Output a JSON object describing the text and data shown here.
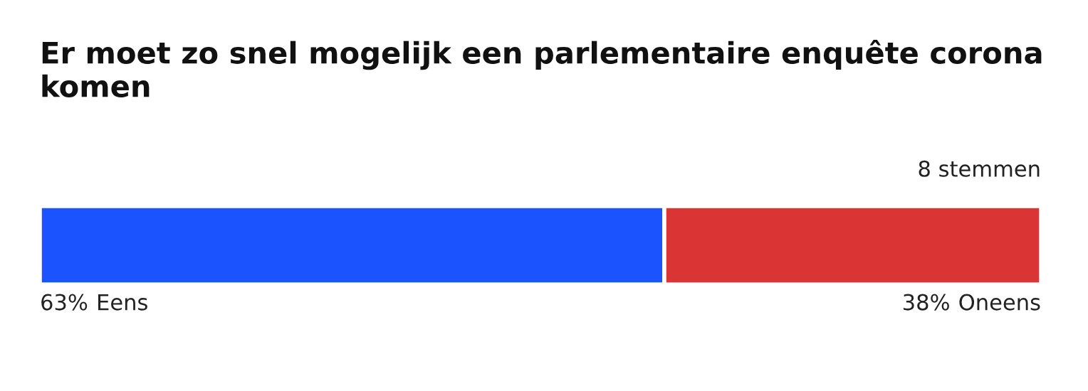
{
  "chart_data": {
    "type": "bar",
    "orientation": "horizontal",
    "stacked": true,
    "title": "Er moet zo snel mogelijk een parlementaire enquête corona komen",
    "annotations": [
      "8 stemmen"
    ],
    "categories": [
      null
    ],
    "series": [
      {
        "name": "Eens",
        "color": "#1a53ff",
        "values": [
          63
        ],
        "value_labels": [
          "63%"
        ]
      },
      {
        "name": "Oneens",
        "color": "#da3434",
        "values": [
          38
        ],
        "value_labels": [
          "38%"
        ]
      }
    ],
    "legend": false
  }
}
